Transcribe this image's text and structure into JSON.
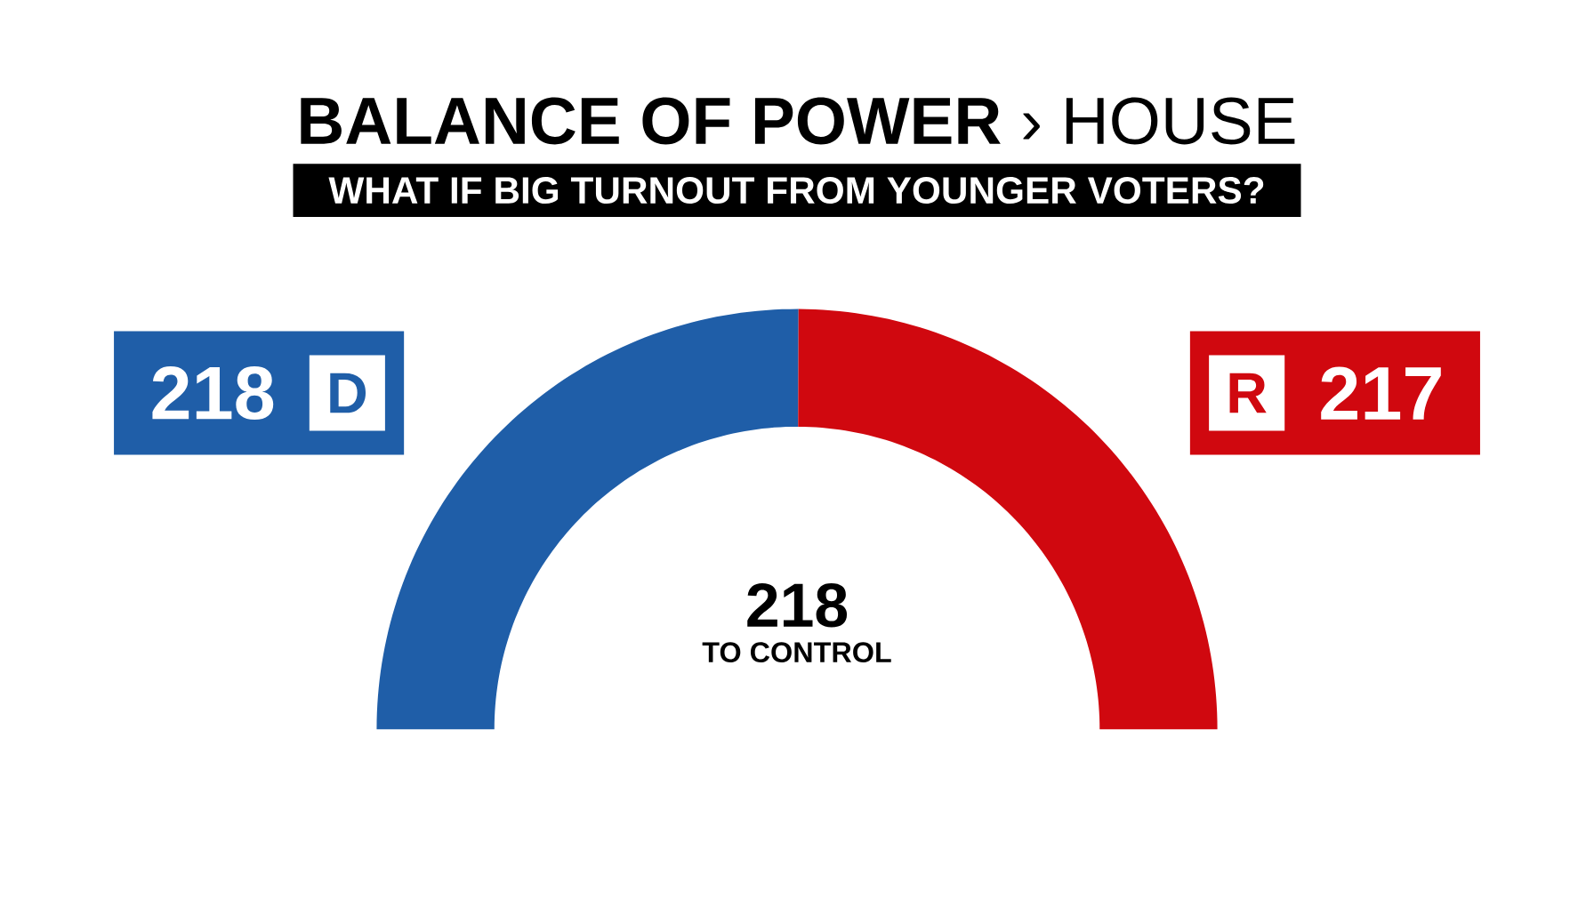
{
  "chart_data": {
    "type": "donut",
    "title": "**BALANCE OF POWER** › HOUSE",
    "subtitle": "WHAT IF BIG TURNOUT FROM YOUNGER VOTERS?",
    "categories": [
      "D",
      "R"
    ],
    "values": [
      218,
      217
    ],
    "colors": [
      "#1f5ea8",
      "#d0080f"
    ],
    "data_labels": true,
    "annotations": [
      "218",
      "TO CONTROL"
    ]
  }
}
